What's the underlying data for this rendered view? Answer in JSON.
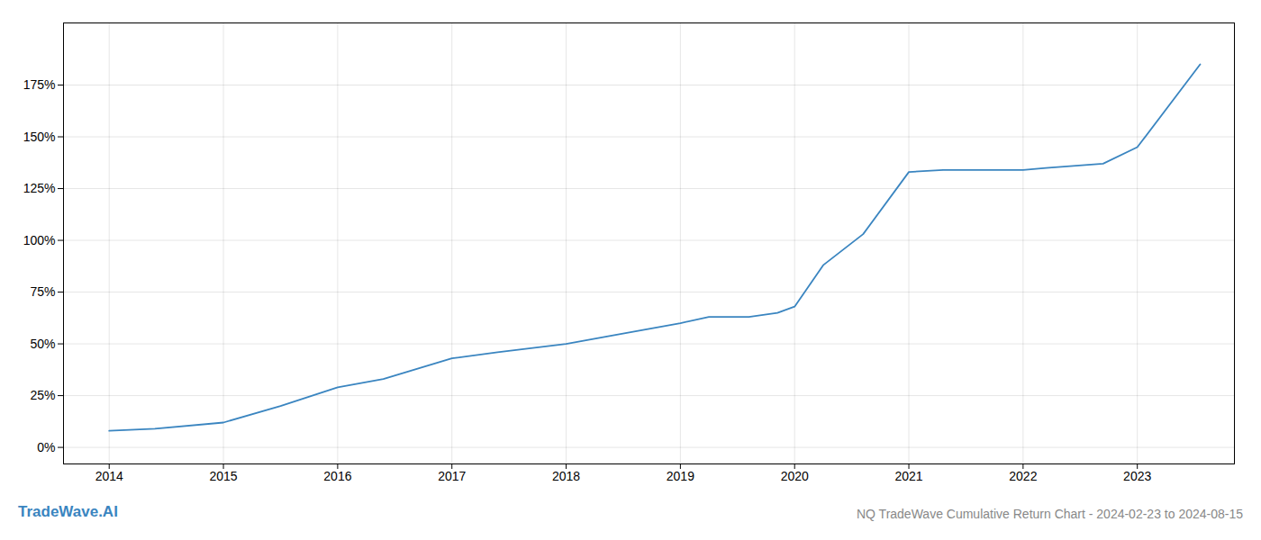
{
  "chart_data": {
    "type": "line",
    "title": "NQ TradeWave Cumulative Return Chart - 2024-02-23 to 2024-08-15",
    "annotations": [
      "TradeWave.AI"
    ],
    "color": "#3a85c0",
    "x": [
      2014.0,
      2014.4,
      2015.0,
      2015.5,
      2016.0,
      2016.4,
      2017.0,
      2017.4,
      2018.0,
      2018.4,
      2019.0,
      2019.25,
      2019.6,
      2019.85,
      2020.0,
      2020.25,
      2020.6,
      2021.0,
      2021.3,
      2022.0,
      2022.2,
      2022.7,
      2023.0,
      2023.55
    ],
    "values": [
      8,
      9,
      12,
      20,
      29,
      33,
      43,
      46,
      50,
      54,
      60,
      63,
      63,
      65,
      68,
      88,
      103,
      133,
      134,
      134,
      135,
      137,
      145,
      185
    ],
    "xlim": [
      2013.6,
      2023.85
    ],
    "xticks": [
      2014,
      2015,
      2016,
      2017,
      2018,
      2019,
      2020,
      2021,
      2022,
      2023
    ],
    "ylim": [
      -8,
      205
    ],
    "yticks": [
      {
        "value": 0,
        "label": "0%"
      },
      {
        "value": 25,
        "label": "25%"
      },
      {
        "value": 50,
        "label": "50%"
      },
      {
        "value": 75,
        "label": "75%"
      },
      {
        "value": 100,
        "label": "100%"
      },
      {
        "value": 125,
        "label": "125%"
      },
      {
        "value": 150,
        "label": "150%"
      },
      {
        "value": 175,
        "label": "175%"
      }
    ],
    "grid": true
  }
}
